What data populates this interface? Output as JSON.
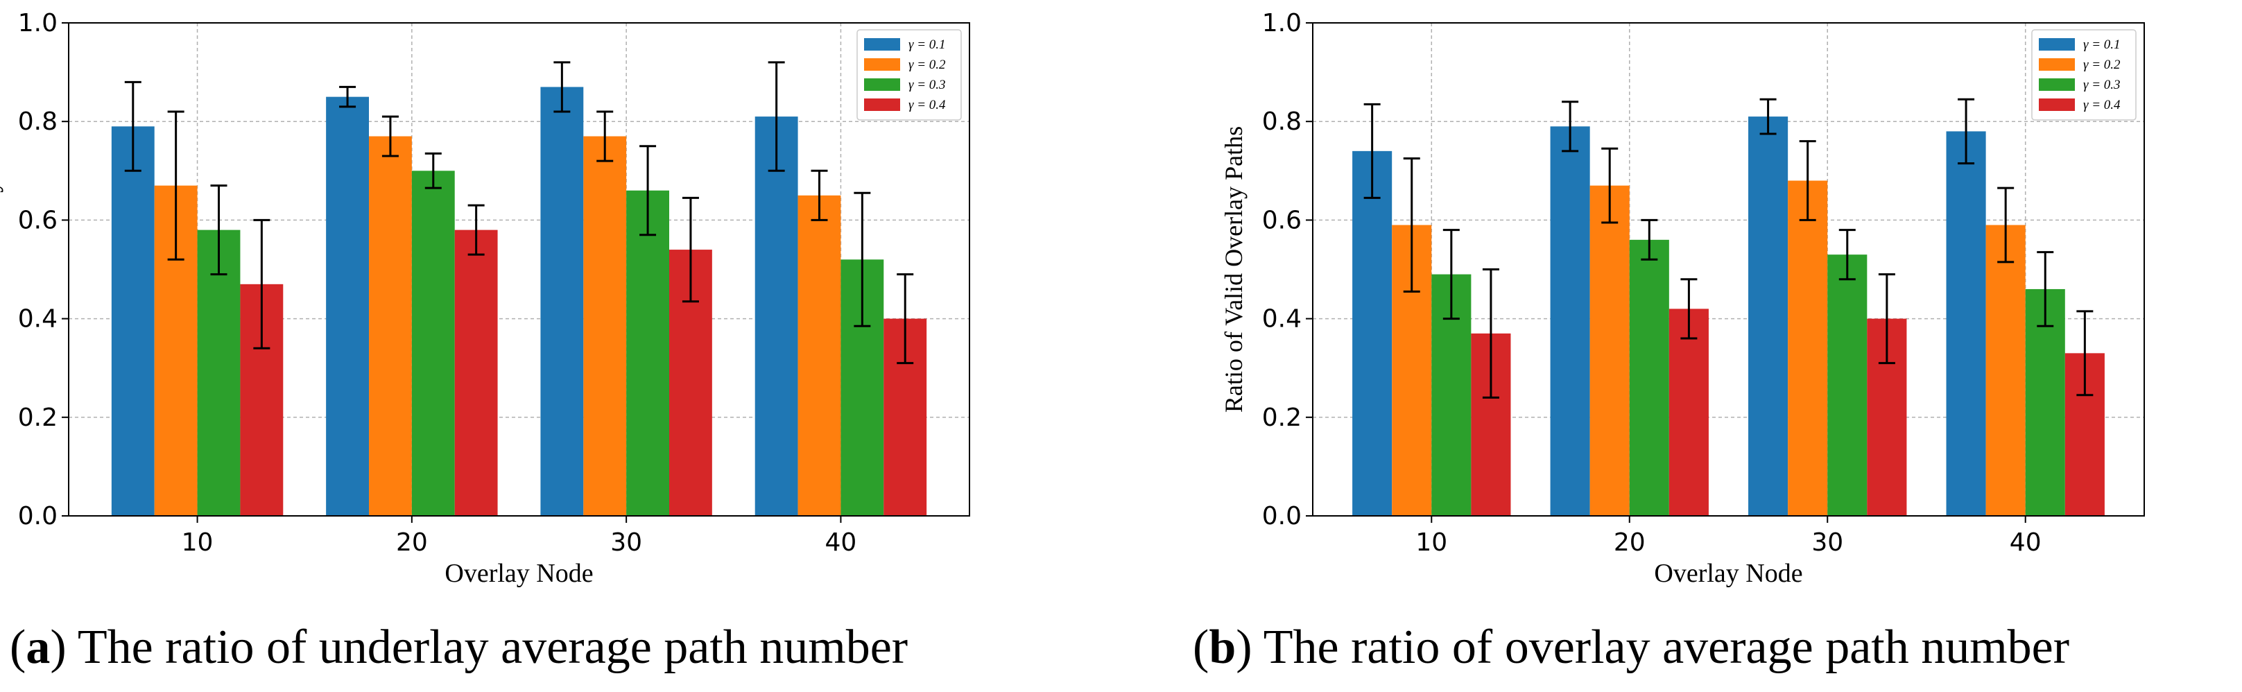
{
  "colors": {
    "series": [
      "#1f77b4",
      "#ff7f0e",
      "#2ca02c",
      "#d62728"
    ],
    "grid": "#b0b0b0",
    "axis": "#000000",
    "error_bar": "#000000"
  },
  "chart_data": [
    {
      "type": "bar",
      "title": "",
      "xlabel": "Overlay Node",
      "ylabel": "Ratio of Valid Underlay Paths",
      "ylim": [
        0,
        1.0
      ],
      "yticks": [
        "0.0",
        "0.2",
        "0.4",
        "0.6",
        "0.8",
        "1.0"
      ],
      "grid": true,
      "legend_position": "top-right",
      "categories": [
        "10",
        "20",
        "30",
        "40"
      ],
      "series": [
        {
          "name": "γ = 0.1",
          "values": [
            0.79,
            0.85,
            0.87,
            0.81
          ],
          "errors": [
            0.09,
            0.02,
            0.05,
            0.11
          ]
        },
        {
          "name": "γ = 0.2",
          "values": [
            0.67,
            0.77,
            0.77,
            0.65
          ],
          "errors": [
            0.15,
            0.04,
            0.05,
            0.05
          ]
        },
        {
          "name": "γ = 0.3",
          "values": [
            0.58,
            0.7,
            0.66,
            0.52
          ],
          "errors": [
            0.09,
            0.035,
            0.09,
            0.135
          ]
        },
        {
          "name": "γ = 0.4",
          "values": [
            0.47,
            0.58,
            0.54,
            0.4
          ],
          "errors": [
            0.13,
            0.05,
            0.105,
            0.09
          ]
        }
      ],
      "caption_label": "(a)",
      "caption_text": "The ratio of underlay average path number"
    },
    {
      "type": "bar",
      "title": "",
      "xlabel": "Overlay Node",
      "ylabel": "Ratio of Valid Overlay Paths",
      "ylim": [
        0,
        1.0
      ],
      "yticks": [
        "0.0",
        "0.2",
        "0.4",
        "0.6",
        "0.8",
        "1.0"
      ],
      "grid": true,
      "legend_position": "top-right",
      "categories": [
        "10",
        "20",
        "30",
        "40"
      ],
      "series": [
        {
          "name": "γ = 0.1",
          "values": [
            0.74,
            0.79,
            0.81,
            0.78
          ],
          "errors": [
            0.095,
            0.05,
            0.035,
            0.065
          ]
        },
        {
          "name": "γ = 0.2",
          "values": [
            0.59,
            0.67,
            0.68,
            0.59
          ],
          "errors": [
            0.135,
            0.075,
            0.08,
            0.075
          ]
        },
        {
          "name": "γ = 0.3",
          "values": [
            0.49,
            0.56,
            0.53,
            0.46
          ],
          "errors": [
            0.09,
            0.04,
            0.05,
            0.075
          ]
        },
        {
          "name": "γ = 0.4",
          "values": [
            0.37,
            0.42,
            0.4,
            0.33
          ],
          "errors": [
            0.13,
            0.06,
            0.09,
            0.085
          ]
        }
      ],
      "caption_label": "(b)",
      "caption_text": "The ratio of overlay average path number"
    }
  ]
}
